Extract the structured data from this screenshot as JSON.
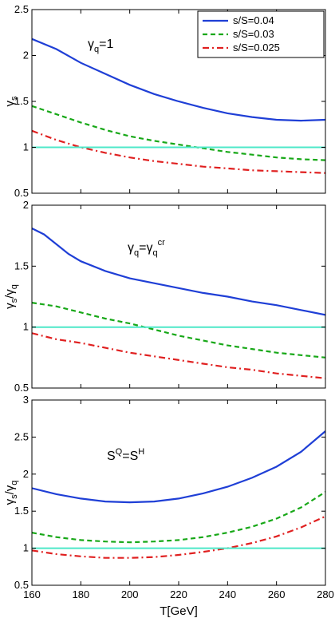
{
  "chart_data": [
    {
      "type": "line",
      "annotation": {
        "base": "γ",
        "sub": "q",
        "rest": "=1"
      },
      "ylabel": {
        "base": "γ",
        "sub": "s"
      },
      "xlim": [
        160,
        280
      ],
      "ylim": [
        0.5,
        2.5
      ],
      "yticks": [
        "0.5",
        "1",
        "1.5",
        "2",
        "2.5"
      ],
      "legend": {
        "placement": "top-right",
        "entries": [
          "s/S=0.04",
          "s/S=0.03",
          "s/S=0.025"
        ]
      },
      "series": [
        {
          "name": "s/S=0.04",
          "color": "#1f3fd6",
          "dash": "solid",
          "points": [
            [
              160,
              2.18
            ],
            [
              170,
              2.07
            ],
            [
              180,
              1.92
            ],
            [
              190,
              1.8
            ],
            [
              200,
              1.68
            ],
            [
              210,
              1.58
            ],
            [
              220,
              1.5
            ],
            [
              230,
              1.43
            ],
            [
              240,
              1.37
            ],
            [
              250,
              1.33
            ],
            [
              260,
              1.3
            ],
            [
              270,
              1.29
            ],
            [
              280,
              1.3
            ]
          ]
        },
        {
          "name": "s/S=0.03",
          "color": "#18a818",
          "dash": "dash",
          "points": [
            [
              160,
              1.45
            ],
            [
              170,
              1.36
            ],
            [
              180,
              1.27
            ],
            [
              190,
              1.19
            ],
            [
              200,
              1.12
            ],
            [
              210,
              1.07
            ],
            [
              220,
              1.03
            ],
            [
              230,
              0.99
            ],
            [
              240,
              0.95
            ],
            [
              250,
              0.92
            ],
            [
              260,
              0.89
            ],
            [
              270,
              0.87
            ],
            [
              280,
              0.86
            ]
          ]
        },
        {
          "name": "s/S=0.025",
          "color": "#e02020",
          "dash": "dashdot",
          "points": [
            [
              160,
              1.18
            ],
            [
              170,
              1.08
            ],
            [
              180,
              1.0
            ],
            [
              190,
              0.94
            ],
            [
              200,
              0.89
            ],
            [
              210,
              0.85
            ],
            [
              220,
              0.82
            ],
            [
              230,
              0.79
            ],
            [
              240,
              0.77
            ],
            [
              250,
              0.75
            ],
            [
              260,
              0.74
            ],
            [
              270,
              0.73
            ],
            [
              280,
              0.72
            ]
          ]
        },
        {
          "name": "",
          "color": "#4de8c8",
          "dash": "solid",
          "points": [
            [
              160,
              1.0
            ],
            [
              280,
              1.0
            ]
          ]
        }
      ]
    },
    {
      "type": "line",
      "annotation": {
        "base": "γ",
        "sub": "q",
        "rest": "=γ",
        "sub2": "q",
        "sup2": "cr"
      },
      "ylabel": {
        "base": "γ",
        "sub": "s",
        "rest": "/γ",
        "sub2": "q"
      },
      "xlim": [
        160,
        280
      ],
      "ylim": [
        0.5,
        2
      ],
      "yticks": [
        "0.5",
        "1",
        "1.5",
        "2"
      ],
      "series": [
        {
          "name": "s/S=0.04",
          "color": "#1f3fd6",
          "dash": "solid",
          "points": [
            [
              160,
              1.81
            ],
            [
              165,
              1.76
            ],
            [
              170,
              1.68
            ],
            [
              175,
              1.6
            ],
            [
              180,
              1.54
            ],
            [
              190,
              1.46
            ],
            [
              200,
              1.4
            ],
            [
              210,
              1.36
            ],
            [
              220,
              1.32
            ],
            [
              230,
              1.28
            ],
            [
              240,
              1.25
            ],
            [
              250,
              1.21
            ],
            [
              260,
              1.18
            ],
            [
              270,
              1.14
            ],
            [
              280,
              1.1
            ]
          ]
        },
        {
          "name": "s/S=0.03",
          "color": "#18a818",
          "dash": "dash",
          "points": [
            [
              160,
              1.2
            ],
            [
              170,
              1.17
            ],
            [
              180,
              1.12
            ],
            [
              190,
              1.07
            ],
            [
              200,
              1.03
            ],
            [
              210,
              0.98
            ],
            [
              220,
              0.93
            ],
            [
              230,
              0.89
            ],
            [
              240,
              0.85
            ],
            [
              250,
              0.82
            ],
            [
              260,
              0.79
            ],
            [
              270,
              0.77
            ],
            [
              280,
              0.75
            ]
          ]
        },
        {
          "name": "s/S=0.025",
          "color": "#e02020",
          "dash": "dashdot",
          "points": [
            [
              160,
              0.95
            ],
            [
              170,
              0.9
            ],
            [
              180,
              0.87
            ],
            [
              190,
              0.83
            ],
            [
              200,
              0.79
            ],
            [
              210,
              0.76
            ],
            [
              220,
              0.73
            ],
            [
              230,
              0.7
            ],
            [
              240,
              0.67
            ],
            [
              250,
              0.65
            ],
            [
              260,
              0.62
            ],
            [
              270,
              0.6
            ],
            [
              280,
              0.58
            ]
          ]
        },
        {
          "name": "",
          "color": "#4de8c8",
          "dash": "solid",
          "points": [
            [
              160,
              1.0
            ],
            [
              280,
              1.0
            ]
          ]
        }
      ]
    },
    {
      "type": "line",
      "annotation": {
        "base": "S",
        "sup": "Q",
        "rest": "=S",
        "sup2": "H"
      },
      "ylabel": {
        "base": "γ",
        "sub": "s",
        "rest": "/γ",
        "sub2": "q"
      },
      "xlabel": "T[GeV]",
      "xlim": [
        160,
        280
      ],
      "ylim": [
        0.5,
        3
      ],
      "yticks": [
        "0.5",
        "1",
        "1.5",
        "2",
        "2.5",
        "3"
      ],
      "xticks": [
        "160",
        "180",
        "200",
        "220",
        "240",
        "260",
        "280"
      ],
      "series": [
        {
          "name": "s/S=0.04",
          "color": "#1f3fd6",
          "dash": "solid",
          "points": [
            [
              160,
              1.81
            ],
            [
              170,
              1.73
            ],
            [
              180,
              1.67
            ],
            [
              190,
              1.63
            ],
            [
              200,
              1.62
            ],
            [
              210,
              1.63
            ],
            [
              220,
              1.67
            ],
            [
              230,
              1.74
            ],
            [
              240,
              1.83
            ],
            [
              250,
              1.95
            ],
            [
              260,
              2.1
            ],
            [
              270,
              2.3
            ],
            [
              280,
              2.58
            ]
          ]
        },
        {
          "name": "s/S=0.03",
          "color": "#18a818",
          "dash": "dash",
          "points": [
            [
              160,
              1.21
            ],
            [
              170,
              1.15
            ],
            [
              180,
              1.11
            ],
            [
              190,
              1.09
            ],
            [
              200,
              1.08
            ],
            [
              210,
              1.09
            ],
            [
              220,
              1.11
            ],
            [
              230,
              1.15
            ],
            [
              240,
              1.21
            ],
            [
              250,
              1.29
            ],
            [
              260,
              1.4
            ],
            [
              270,
              1.55
            ],
            [
              280,
              1.76
            ]
          ]
        },
        {
          "name": "s/S=0.025",
          "color": "#e02020",
          "dash": "dashdot",
          "points": [
            [
              160,
              0.97
            ],
            [
              170,
              0.92
            ],
            [
              180,
              0.89
            ],
            [
              190,
              0.87
            ],
            [
              200,
              0.87
            ],
            [
              210,
              0.88
            ],
            [
              220,
              0.91
            ],
            [
              230,
              0.95
            ],
            [
              240,
              1.0
            ],
            [
              250,
              1.07
            ],
            [
              260,
              1.16
            ],
            [
              270,
              1.28
            ],
            [
              280,
              1.43
            ]
          ]
        },
        {
          "name": "",
          "color": "#4de8c8",
          "dash": "solid",
          "points": [
            [
              160,
              1.0
            ],
            [
              280,
              1.0
            ]
          ]
        }
      ]
    }
  ]
}
